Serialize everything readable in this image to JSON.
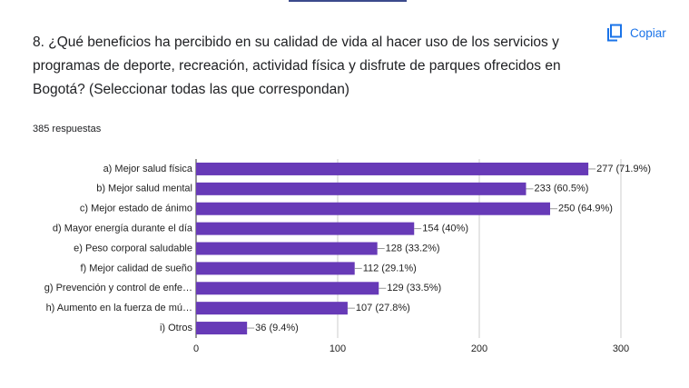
{
  "chart_data": {
    "type": "bar",
    "orientation": "horizontal",
    "title": "8.   ¿Qué beneficios ha percibido en su calidad de vida al hacer uso de los servicios y programas de deporte, recreación, actividad física y disfrute de parques ofrecidos en Bogotá? (Seleccionar todas las que correspondan)",
    "subtitle": "385 respuestas",
    "button": "Copiar",
    "categories": [
      "a) Mejor salud física",
      "b) Mejor salud mental",
      "c) Mejor estado de ánimo",
      "d) Mayor energía durante el día",
      "e) Peso corporal saludable",
      "f) Mejor calidad de sueño",
      "g) Prevención y control de enfe…",
      "h) Aumento en la fuerza de mú…",
      "i) Otros"
    ],
    "values": [
      277,
      233,
      250,
      154,
      128,
      112,
      129,
      107,
      36
    ],
    "value_labels": [
      "277 (71.9%)",
      "233 (60.5%)",
      "250 (64.9%)",
      "154 (40%)",
      "128 (33.2%)",
      "112 (29.1%)",
      "129 (33.5%)",
      "107 (27.8%)",
      "36 (9.4%)"
    ],
    "color": "#673ab7",
    "xlim": [
      0,
      300
    ],
    "xticks": [
      0,
      100,
      200,
      300
    ],
    "grid": true
  }
}
